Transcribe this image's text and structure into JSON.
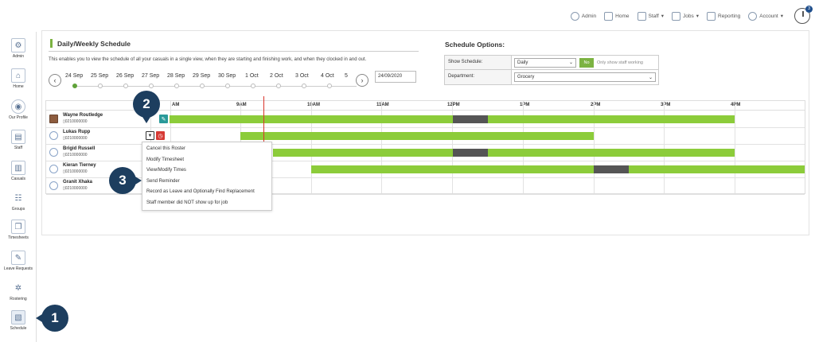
{
  "topnav": {
    "items": [
      {
        "label": "Admin",
        "icon": "gear-icon"
      },
      {
        "label": "Home",
        "icon": "home-icon"
      },
      {
        "label": "Staff",
        "icon": "staff-icon",
        "dropdown": true
      },
      {
        "label": "Jobs",
        "icon": "jobs-icon",
        "dropdown": true
      },
      {
        "label": "Reporting",
        "icon": "reporting-icon"
      },
      {
        "label": "Account",
        "icon": "account-icon",
        "dropdown": true
      }
    ],
    "timer_badge": "3"
  },
  "sidebar": {
    "items": [
      {
        "label": "Admin",
        "icon": "gear-icon"
      },
      {
        "label": "Home",
        "icon": "home-icon"
      },
      {
        "label": "Our Profile",
        "icon": "profile-icon"
      },
      {
        "label": "Staff",
        "icon": "staff-icon"
      },
      {
        "label": "Casuals",
        "icon": "casuals-icon"
      },
      {
        "label": "Groups",
        "icon": "groups-icon"
      },
      {
        "label": "Timesheets",
        "icon": "timesheets-icon"
      },
      {
        "label": "Leave Requests",
        "icon": "leave-icon"
      },
      {
        "label": "Rostering",
        "icon": "rostering-icon"
      },
      {
        "label": "Schedule",
        "icon": "schedule-icon",
        "active": true
      }
    ]
  },
  "schedule": {
    "title": "Daily/Weekly Schedule",
    "description": "This enables you to view the schedule of all your casuals in a single view, when they are starting and finishing work, and when they clocked in and out.",
    "dates": [
      "24 Sep",
      "25 Sep",
      "26 Sep",
      "27 Sep",
      "28 Sep",
      "29 Sep",
      "30 Sep",
      "1 Oct",
      "2 Oct",
      "3 Oct",
      "4 Oct",
      "5"
    ],
    "active_date_index": 0,
    "date_input": "24/09/2020",
    "prev_icon": "chevron-left-icon",
    "next_icon": "chevron-right-icon"
  },
  "options": {
    "title": "Schedule Options:",
    "show_schedule_label": "Show Schedule:",
    "show_schedule_value": "Daily",
    "toggle_label": "No",
    "toggle_note": "Only show staff working",
    "department_label": "Department:",
    "department_value": "Grocery"
  },
  "timeline": {
    "hours": [
      "AM",
      "9AM",
      "10AM",
      "11AM",
      "12PM",
      "1PM",
      "2PM",
      "3PM",
      "4PM"
    ],
    "staff": [
      {
        "name": "Wayne Routledge",
        "phone": "0210000000",
        "photo": true
      },
      {
        "name": "Lukas Rupp",
        "phone": "0210000000"
      },
      {
        "name": "Brigid Russell",
        "phone": "0210000000"
      },
      {
        "name": "Kieran Tierney",
        "phone": "0210000000"
      },
      {
        "name": "Granit Xhaka",
        "phone": "0210000000"
      }
    ]
  },
  "context_menu": {
    "items": [
      "Cancel this Roster",
      "Modify Timesheet",
      "View/Modify Times",
      "Send Reminder",
      "Record as Leave and Optionally Find Replacement",
      "Staff member did NOT show up for job"
    ]
  },
  "callouts": [
    "1",
    "2",
    "3"
  ],
  "colors": {
    "accent": "#7cb342",
    "shift": "#8ccc3a",
    "break": "#555555",
    "now_line": "#d9342b",
    "callout": "#1d3e5f",
    "clock_button": "#d63a35"
  }
}
